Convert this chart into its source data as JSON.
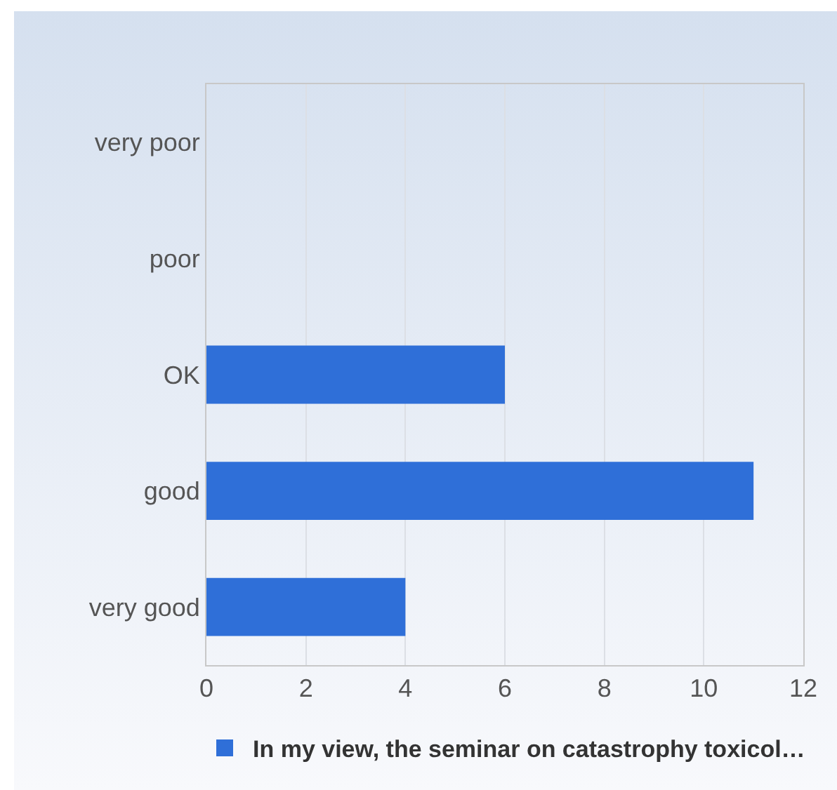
{
  "chart_data": {
    "type": "bar",
    "orientation": "horizontal",
    "categories": [
      "very poor",
      "poor",
      "OK",
      "good",
      "very good"
    ],
    "series": [
      {
        "name": "In my view, the seminar on catastrophy toxicol…",
        "color": "#2f6fd8",
        "values": [
          0,
          0,
          6,
          11,
          4
        ]
      }
    ],
    "xlim": [
      0,
      12
    ],
    "xticks": [
      0,
      2,
      4,
      6,
      8,
      10,
      12
    ],
    "grid": "x",
    "legend": "bottom"
  }
}
